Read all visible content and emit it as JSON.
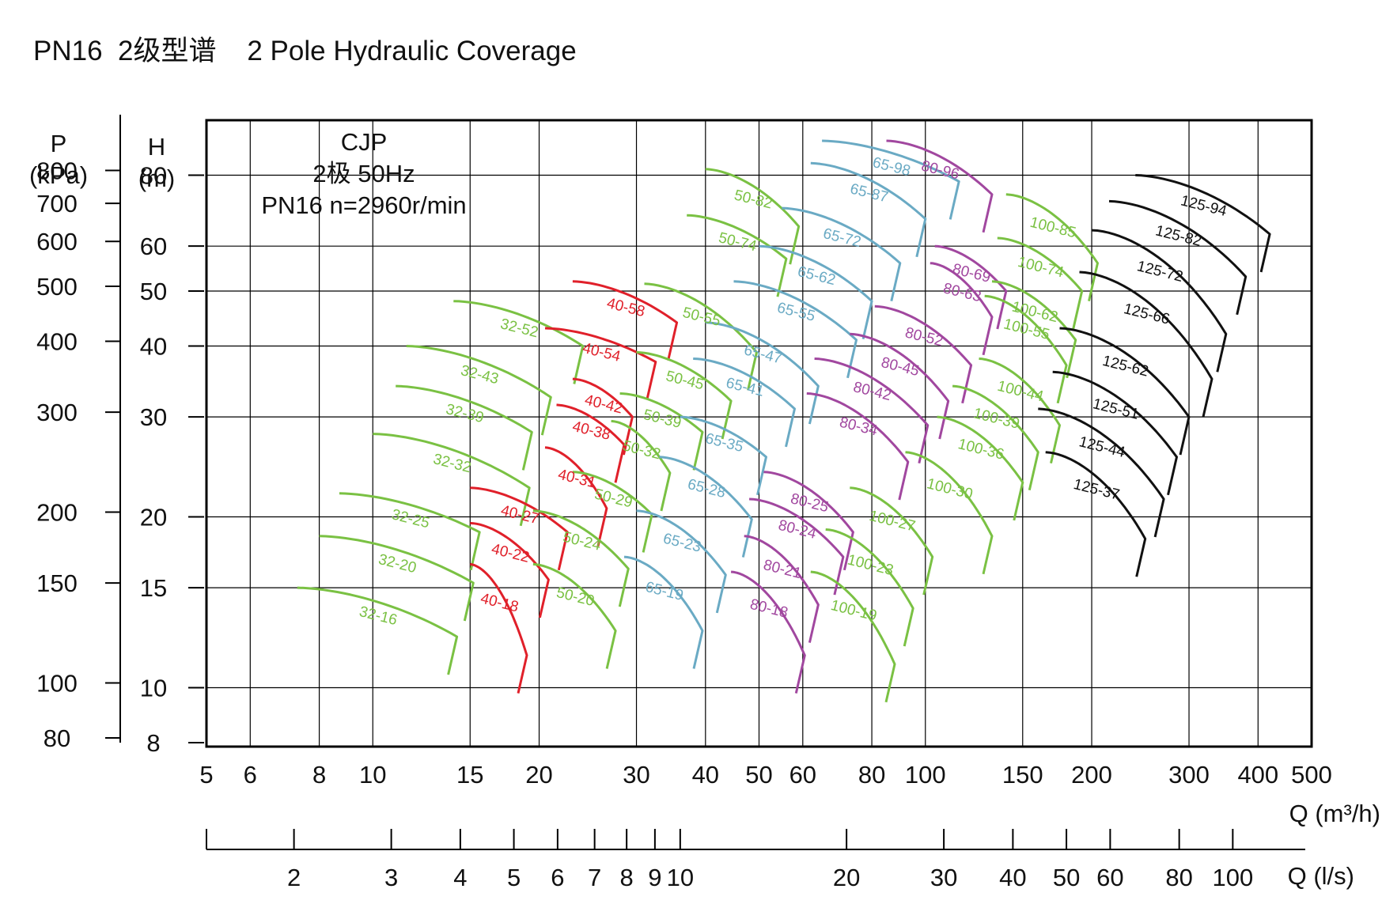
{
  "title": "PN16  2级型谱    2 Pole Hydraulic Coverage",
  "chart_data": {
    "type": "line",
    "title": "PN16  2级型谱    2 Pole Hydraulic Coverage",
    "annotation": [
      "CJP",
      "2极  50Hz",
      "PN16  n=2960r/min"
    ],
    "x_axis": {
      "label_line1": "Q (m³/h)",
      "label_line2": "Q (l/s)",
      "scale": "log",
      "range_m3h": [
        5,
        500
      ],
      "ticks_m3h": [
        5,
        6,
        8,
        10,
        15,
        20,
        30,
        40,
        50,
        60,
        80,
        100,
        150,
        200,
        300,
        400,
        500
      ],
      "ticks_ls": [
        2,
        3,
        4,
        5,
        6,
        7,
        8,
        9,
        10,
        20,
        30,
        40,
        50,
        60,
        80,
        100
      ]
    },
    "y_axis": {
      "label_h": [
        "H",
        "(m)"
      ],
      "label_p": [
        "P",
        "(kPa)"
      ],
      "scale": "log",
      "range_m": [
        8,
        100
      ],
      "ticks_m": [
        8,
        10,
        15,
        20,
        30,
        40,
        50,
        60,
        80
      ],
      "ticks_kpa": [
        80,
        100,
        150,
        200,
        300,
        400,
        500,
        600,
        700,
        800
      ]
    },
    "grid": true,
    "colors": {
      "green": "#7ac143",
      "red": "#e0202a",
      "blue": "#6aaac4",
      "purple": "#a1479f",
      "black": "#111111"
    },
    "curves": [
      {
        "label": "32-16",
        "color": "green",
        "q": [
          7.3,
          14.2
        ],
        "h": [
          15,
          12.3
        ]
      },
      {
        "label": "32-20",
        "color": "green",
        "q": [
          8,
          15.2
        ],
        "h": [
          18.5,
          15.3
        ]
      },
      {
        "label": "32-25",
        "color": "green",
        "q": [
          8.7,
          15.6
        ],
        "h": [
          22,
          18.8
        ]
      },
      {
        "label": "32-32",
        "color": "green",
        "q": [
          10,
          19.2
        ],
        "h": [
          28,
          22.5
        ]
      },
      {
        "label": "32-39",
        "color": "green",
        "q": [
          11,
          19.4
        ],
        "h": [
          34,
          28.2
        ]
      },
      {
        "label": "32-43",
        "color": "green",
        "q": [
          11.5,
          21
        ],
        "h": [
          40,
          32.5
        ]
      },
      {
        "label": "32-52",
        "color": "green",
        "q": [
          14,
          24
        ],
        "h": [
          48,
          40
        ]
      },
      {
        "label": "40-18",
        "color": "red",
        "q": [
          15,
          19
        ],
        "h": [
          16.5,
          11.4
        ]
      },
      {
        "label": "40-22",
        "color": "red",
        "q": [
          15,
          20.8
        ],
        "h": [
          19.5,
          15.5
        ]
      },
      {
        "label": "40-27",
        "color": "red",
        "q": [
          15,
          22.5
        ],
        "h": [
          22.5,
          18.8
        ]
      },
      {
        "label": "40-31",
        "color": "red",
        "q": [
          20.5,
          26.5
        ],
        "h": [
          26.5,
          20.7
        ]
      },
      {
        "label": "40-38",
        "color": "red",
        "q": [
          21.5,
          28.5
        ],
        "h": [
          31.5,
          26.8
        ]
      },
      {
        "label": "40-42",
        "color": "red",
        "q": [
          23,
          29.5
        ],
        "h": [
          35,
          30
        ]
      },
      {
        "label": "40-54",
        "color": "red",
        "q": [
          20.5,
          32.5
        ],
        "h": [
          43,
          37.5
        ]
      },
      {
        "label": "40-58",
        "color": "red",
        "q": [
          23,
          35.5
        ],
        "h": [
          52,
          44
        ]
      },
      {
        "label": "50-20",
        "color": "green",
        "q": [
          19.5,
          27.5
        ],
        "h": [
          16.5,
          12.6
        ]
      },
      {
        "label": "50-24",
        "color": "green",
        "q": [
          19.5,
          29
        ],
        "h": [
          20.5,
          16.2
        ]
      },
      {
        "label": "50-29",
        "color": "green",
        "q": [
          23,
          32
        ],
        "h": [
          24,
          20.2
        ]
      },
      {
        "label": "50-32",
        "color": "green",
        "q": [
          27,
          34.5
        ],
        "h": [
          29.5,
          23.9
        ]
      },
      {
        "label": "50-39",
        "color": "green",
        "q": [
          28,
          39.5
        ],
        "h": [
          33,
          28.2
        ]
      },
      {
        "label": "50-45",
        "color": "green",
        "q": [
          30,
          44.5
        ],
        "h": [
          39,
          32
        ]
      },
      {
        "label": "50-55",
        "color": "green",
        "q": [
          31,
          49.5
        ],
        "h": [
          51.5,
          39
        ]
      },
      {
        "label": "50-74",
        "color": "green",
        "q": [
          37,
          56
        ],
        "h": [
          68,
          57
        ]
      },
      {
        "label": "50-82",
        "color": "green",
        "q": [
          40,
          59
        ],
        "h": [
          82,
          65
        ]
      },
      {
        "label": "65-19",
        "color": "blue",
        "q": [
          28.5,
          39.5
        ],
        "h": [
          17,
          12.6
        ]
      },
      {
        "label": "65-23",
        "color": "blue",
        "q": [
          30,
          43.5
        ],
        "h": [
          20.5,
          15.8
        ]
      },
      {
        "label": "65-28",
        "color": "blue",
        "q": [
          33,
          48.5
        ],
        "h": [
          25.5,
          19.8
        ]
      },
      {
        "label": "65-35",
        "color": "blue",
        "q": [
          36,
          51.5
        ],
        "h": [
          30,
          25.5
        ]
      },
      {
        "label": "65-41",
        "color": "blue",
        "q": [
          38,
          58
        ],
        "h": [
          38,
          31
        ]
      },
      {
        "label": "65-47",
        "color": "blue",
        "q": [
          40,
          64
        ],
        "h": [
          44,
          34
        ]
      },
      {
        "label": "65-55",
        "color": "blue",
        "q": [
          45,
          75
        ],
        "h": [
          52,
          41
        ]
      },
      {
        "label": "65-62",
        "color": "blue",
        "q": [
          50,
          80
        ],
        "h": [
          60,
          48
        ]
      },
      {
        "label": "65-72",
        "color": "blue",
        "q": [
          55,
          90
        ],
        "h": [
          70,
          56
        ]
      },
      {
        "label": "65-87",
        "color": "blue",
        "q": [
          62,
          100
        ],
        "h": [
          84,
          67
        ]
      },
      {
        "label": "65-98",
        "color": "blue",
        "q": [
          65,
          115
        ],
        "h": [
          92,
          78
        ]
      },
      {
        "label": "80-18",
        "color": "purple",
        "q": [
          44.5,
          60.5
        ],
        "h": [
          16,
          11.4
        ]
      },
      {
        "label": "80-21",
        "color": "purple",
        "q": [
          47,
          64
        ],
        "h": [
          18.5,
          14
        ]
      },
      {
        "label": "80-24",
        "color": "purple",
        "q": [
          48,
          71
        ],
        "h": [
          21.5,
          17
        ]
      },
      {
        "label": "80-25",
        "color": "purple",
        "q": [
          51,
          74
        ],
        "h": [
          24,
          18.8
        ]
      },
      {
        "label": "80-34",
        "color": "purple",
        "q": [
          61,
          93
        ],
        "h": [
          33,
          25
        ]
      },
      {
        "label": "80-42",
        "color": "purple",
        "q": [
          63,
          101
        ],
        "h": [
          38,
          29
        ]
      },
      {
        "label": "80-45",
        "color": "purple",
        "q": [
          73,
          110
        ],
        "h": [
          42,
          32
        ]
      },
      {
        "label": "80-52",
        "color": "purple",
        "q": [
          81,
          121
        ],
        "h": [
          47,
          37
        ]
      },
      {
        "label": "80-63",
        "color": "purple",
        "q": [
          102,
          132
        ],
        "h": [
          56,
          45
        ]
      },
      {
        "label": "80-69",
        "color": "purple",
        "q": [
          104,
          140
        ],
        "h": [
          60,
          50
        ]
      },
      {
        "label": "80-96",
        "color": "purple",
        "q": [
          85,
          132
        ],
        "h": [
          92,
          74
        ]
      },
      {
        "label": "100-19",
        "color": "green",
        "q": [
          62,
          88
        ],
        "h": [
          16,
          11
        ]
      },
      {
        "label": "100-23",
        "color": "green",
        "q": [
          66,
          95
        ],
        "h": [
          19,
          13.8
        ]
      },
      {
        "label": "100-27",
        "color": "green",
        "q": [
          73,
          103
        ],
        "h": [
          22.5,
          17
        ]
      },
      {
        "label": "100-30",
        "color": "green",
        "q": [
          92,
          132
        ],
        "h": [
          26,
          18.5
        ]
      },
      {
        "label": "100-36",
        "color": "green",
        "q": [
          105,
          150
        ],
        "h": [
          30,
          23
        ]
      },
      {
        "label": "100-39",
        "color": "green",
        "q": [
          112,
          160
        ],
        "h": [
          34,
          26
        ]
      },
      {
        "label": "100-44",
        "color": "green",
        "q": [
          125,
          175
        ],
        "h": [
          38,
          29
        ]
      },
      {
        "label": "100-55",
        "color": "green",
        "q": [
          128,
          180
        ],
        "h": [
          49,
          37
        ]
      },
      {
        "label": "100-62",
        "color": "green",
        "q": [
          132,
          187
        ],
        "h": [
          52,
          41
        ]
      },
      {
        "label": "100-74",
        "color": "green",
        "q": [
          135,
          192
        ],
        "h": [
          62,
          50
        ]
      },
      {
        "label": "100-85",
        "color": "green",
        "q": [
          140,
          205
        ],
        "h": [
          74,
          56
        ]
      },
      {
        "label": "125-37",
        "color": "black",
        "q": [
          165,
          250
        ],
        "h": [
          26,
          18.3
        ]
      },
      {
        "label": "125-44",
        "color": "black",
        "q": [
          160,
          270
        ],
        "h": [
          31,
          21.5
        ]
      },
      {
        "label": "125-51",
        "color": "black",
        "q": [
          170,
          285
        ],
        "h": [
          36,
          25.5
        ]
      },
      {
        "label": "125-62",
        "color": "black",
        "q": [
          175,
          300
        ],
        "h": [
          43,
          30
        ]
      },
      {
        "label": "125-66",
        "color": "black",
        "q": [
          190,
          330
        ],
        "h": [
          54,
          35
        ]
      },
      {
        "label": "125-72",
        "color": "black",
        "q": [
          200,
          350
        ],
        "h": [
          64,
          42
        ]
      },
      {
        "label": "125-82",
        "color": "black",
        "q": [
          215,
          380
        ],
        "h": [
          72,
          53
        ]
      },
      {
        "label": "125-94",
        "color": "black",
        "q": [
          240,
          420
        ],
        "h": [
          80,
          63
        ]
      }
    ]
  }
}
